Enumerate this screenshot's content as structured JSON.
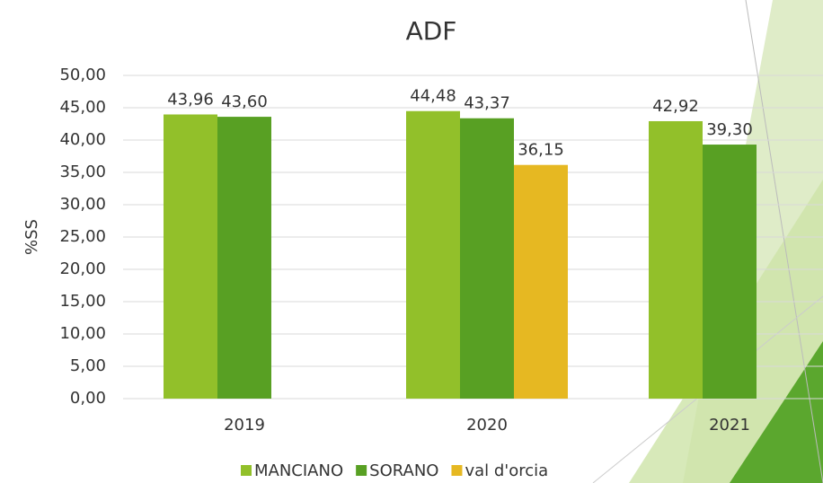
{
  "chart_data": {
    "type": "bar",
    "title": "ADF",
    "ylabel": "%SS",
    "categories": [
      "2019",
      "2020",
      "2021"
    ],
    "series": [
      {
        "name": "MANCIANO",
        "color": "#92c02a",
        "values": [
          43.96,
          44.48,
          42.92
        ],
        "value_labels": [
          "43,96",
          "44,48",
          "42,92"
        ]
      },
      {
        "name": "SORANO",
        "color": "#58a023",
        "values": [
          43.6,
          43.37,
          39.3
        ],
        "value_labels": [
          "43,60",
          "43,37",
          "39,30"
        ]
      },
      {
        "name": "val d'orcia",
        "color": "#e6b822",
        "values": [
          null,
          36.15,
          null
        ],
        "value_labels": [
          null,
          "36,15",
          null
        ]
      }
    ],
    "ylim": [
      0,
      50
    ],
    "yticks": [
      {
        "value": 0,
        "label": "0,00"
      },
      {
        "value": 5,
        "label": "5,00"
      },
      {
        "value": 10,
        "label": "10,00"
      },
      {
        "value": 15,
        "label": "15,00"
      },
      {
        "value": 20,
        "label": "20,00"
      },
      {
        "value": 25,
        "label": "25,00"
      },
      {
        "value": 30,
        "label": "30,00"
      },
      {
        "value": 35,
        "label": "35,00"
      },
      {
        "value": 40,
        "label": "40,00"
      },
      {
        "value": 45,
        "label": "45,00"
      },
      {
        "value": 50,
        "label": "50,00"
      }
    ],
    "grid": true,
    "legend": "bottom"
  }
}
